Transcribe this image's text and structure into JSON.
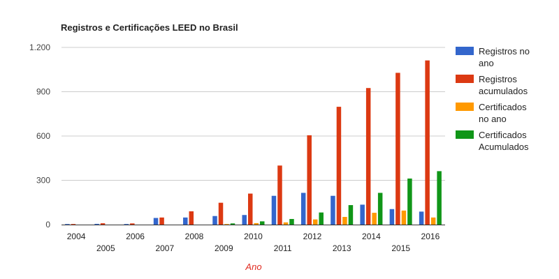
{
  "chart_data": {
    "type": "bar",
    "title": "Registros e Certificações LEED no Brasil",
    "xlabel": "Ano",
    "ylabel": "",
    "ylim": [
      0,
      1200
    ],
    "yticks": [
      0,
      300,
      600,
      900,
      1200
    ],
    "ytick_labels": [
      "0",
      "300",
      "600",
      "900",
      "1.200"
    ],
    "grid": true,
    "legend_position": "right",
    "categories": [
      "2004",
      "2005",
      "2006",
      "2007",
      "2008",
      "2009",
      "2010",
      "2011",
      "2012",
      "2013",
      "2014",
      "2015",
      "2016"
    ],
    "series": [
      {
        "name": "Registros no ano",
        "legend_lines": [
          "Registros no",
          "ano"
        ],
        "color": "#3366cc",
        "values": [
          4,
          5,
          4,
          45,
          48,
          58,
          65,
          195,
          215,
          195,
          135,
          105,
          88
        ]
      },
      {
        "name": "Registros acumulados",
        "legend_lines": [
          "Registros",
          "acumulados"
        ],
        "color": "#dc3912",
        "values": [
          4,
          9,
          8,
          48,
          90,
          148,
          210,
          400,
          605,
          798,
          925,
          1028,
          1112
        ]
      },
      {
        "name": "Certificados no ano",
        "legend_lines": [
          "Certificados",
          "no ano"
        ],
        "color": "#ff9900",
        "values": [
          0,
          0,
          0,
          0,
          0,
          4,
          10,
          15,
          35,
          52,
          80,
          95,
          48
        ]
      },
      {
        "name": "Certificados Acumulados",
        "legend_lines": [
          "Certificados",
          "Acumulados"
        ],
        "color": "#109618",
        "values": [
          0,
          0,
          0,
          0,
          0,
          8,
          22,
          38,
          82,
          132,
          215,
          312,
          362
        ]
      }
    ]
  }
}
